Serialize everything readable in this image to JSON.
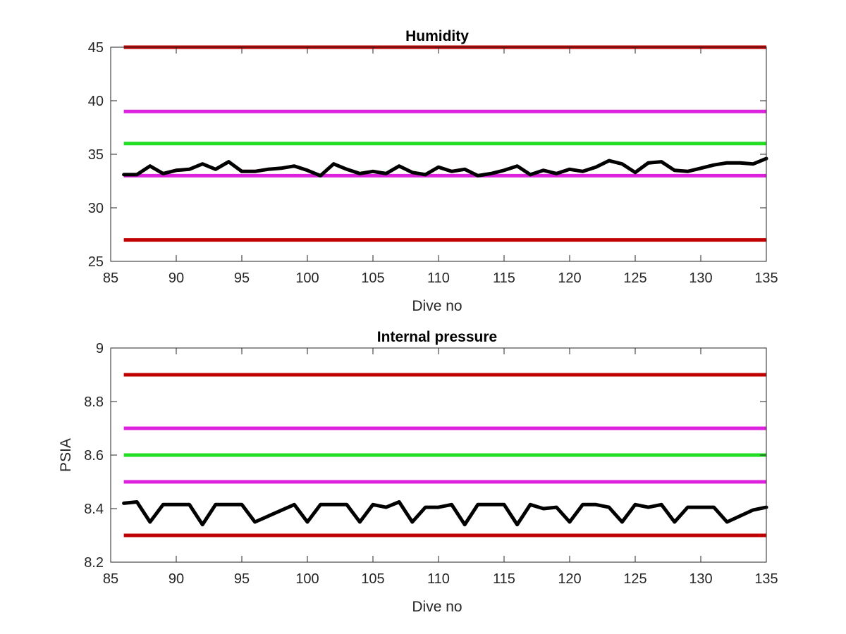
{
  "chart_data": [
    {
      "type": "line",
      "title": "Humidity",
      "xlabel": "Dive no",
      "ylabel": "",
      "xlim": [
        85,
        135
      ],
      "ylim": [
        25,
        45
      ],
      "xticks": [
        85,
        90,
        95,
        100,
        105,
        110,
        115,
        120,
        125,
        130,
        135
      ],
      "yticks": [
        25,
        30,
        35,
        40,
        45
      ],
      "grid": false,
      "legend": "none",
      "thresholds": [
        {
          "value": 45,
          "x": [
            86,
            135
          ],
          "color": "#c00000"
        },
        {
          "value": 39,
          "x": [
            86,
            135
          ],
          "color": "#dd22dd"
        },
        {
          "value": 36,
          "x": [
            86,
            135
          ],
          "color": "#22dd22"
        },
        {
          "value": 33,
          "x": [
            86,
            135
          ],
          "color": "#dd22dd"
        },
        {
          "value": 27,
          "x": [
            86,
            135
          ],
          "color": "#c00000"
        }
      ],
      "series": [
        {
          "color": "#000000",
          "x": [
            86,
            87,
            88,
            89,
            90,
            91,
            92,
            93,
            94,
            95,
            96,
            97,
            98,
            99,
            100,
            101,
            102,
            103,
            104,
            105,
            106,
            107,
            108,
            109,
            110,
            111,
            112,
            113,
            114,
            115,
            116,
            117,
            118,
            119,
            120,
            121,
            122,
            123,
            124,
            125,
            126,
            127,
            128,
            129,
            130,
            131,
            132,
            133,
            134,
            135
          ],
          "y": [
            33.1,
            33.1,
            33.9,
            33.2,
            33.5,
            33.6,
            34.1,
            33.6,
            34.3,
            33.4,
            33.4,
            33.6,
            33.7,
            33.9,
            33.5,
            33.0,
            34.1,
            33.6,
            33.2,
            33.4,
            33.2,
            33.9,
            33.3,
            33.1,
            33.8,
            33.4,
            33.6,
            33.0,
            33.2,
            33.5,
            33.9,
            33.1,
            33.5,
            33.2,
            33.6,
            33.4,
            33.8,
            34.4,
            34.1,
            33.3,
            34.2,
            34.3,
            33.5,
            33.4,
            33.7,
            34.0,
            34.2,
            34.2,
            34.1,
            34.6
          ]
        }
      ]
    },
    {
      "type": "line",
      "title": "Internal pressure",
      "xlabel": "Dive no",
      "ylabel": "PSIA",
      "xlim": [
        85,
        135
      ],
      "ylim": [
        8.2,
        9
      ],
      "xticks": [
        85,
        90,
        95,
        100,
        105,
        110,
        115,
        120,
        125,
        130,
        135
      ],
      "yticks": [
        8.2,
        8.4,
        8.6,
        8.8,
        9
      ],
      "grid": false,
      "legend": "none",
      "thresholds": [
        {
          "value": 8.9,
          "x": [
            86,
            135
          ],
          "color": "#c00000"
        },
        {
          "value": 8.7,
          "x": [
            86,
            135
          ],
          "color": "#dd22dd"
        },
        {
          "value": 8.6,
          "x": [
            86,
            135
          ],
          "color": "#22dd22"
        },
        {
          "value": 8.5,
          "x": [
            86,
            135
          ],
          "color": "#dd22dd"
        },
        {
          "value": 8.3,
          "x": [
            86,
            135
          ],
          "color": "#c00000"
        }
      ],
      "series": [
        {
          "color": "#000000",
          "x": [
            86,
            87,
            88,
            89,
            90,
            91,
            92,
            93,
            94,
            95,
            96,
            99,
            100,
            101,
            102,
            103,
            104,
            105,
            106,
            107,
            108,
            109,
            110,
            111,
            112,
            113,
            114,
            115,
            116,
            117,
            118,
            119,
            120,
            121,
            122,
            123,
            124,
            125,
            126,
            127,
            128,
            129,
            130,
            131,
            132,
            134,
            135
          ],
          "y": [
            8.42,
            8.425,
            8.35,
            8.415,
            8.415,
            8.415,
            8.34,
            8.415,
            8.415,
            8.415,
            8.35,
            8.415,
            8.35,
            8.415,
            8.415,
            8.415,
            8.35,
            8.415,
            8.405,
            8.425,
            8.35,
            8.405,
            8.405,
            8.415,
            8.34,
            8.415,
            8.415,
            8.415,
            8.34,
            8.415,
            8.4,
            8.405,
            8.35,
            8.415,
            8.415,
            8.405,
            8.35,
            8.415,
            8.405,
            8.415,
            8.35,
            8.405,
            8.405,
            8.405,
            8.35,
            8.395,
            8.405
          ]
        }
      ]
    }
  ]
}
